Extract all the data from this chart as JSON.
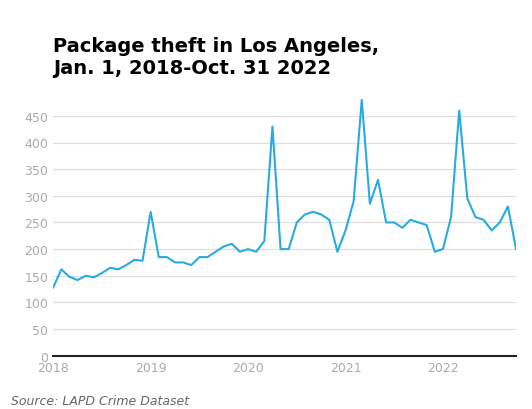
{
  "title": "Package theft in Los Angeles,\nJan. 1, 2018-Oct. 31 2022",
  "source": "Source: LAPD Crime Dataset",
  "line_color": "#29ABE2",
  "background_color": "#ffffff",
  "ylim": [
    0,
    500
  ],
  "yticks": [
    0,
    50,
    100,
    150,
    200,
    250,
    300,
    350,
    400,
    450
  ],
  "values": [
    128,
    162,
    148,
    142,
    150,
    147,
    155,
    165,
    162,
    170,
    180,
    178,
    270,
    185,
    185,
    175,
    175,
    170,
    185,
    185,
    195,
    205,
    210,
    195,
    200,
    195,
    215,
    430,
    200,
    200,
    250,
    265,
    270,
    265,
    255,
    195,
    235,
    290,
    480,
    285,
    330,
    250,
    250,
    240,
    255,
    250,
    245,
    195,
    200,
    260,
    460,
    295,
    260,
    255,
    235,
    250,
    280,
    200
  ],
  "xtick_positions": [
    0,
    12,
    24,
    36,
    48
  ],
  "xtick_labels": [
    "2018",
    "2019",
    "2020",
    "2021",
    "2022"
  ],
  "title_fontsize": 14,
  "tick_fontsize": 9,
  "source_fontsize": 9,
  "line_width": 1.5,
  "tick_color": "#aaaaaa",
  "grid_color": "#dddddd",
  "spine_color": "#222222"
}
